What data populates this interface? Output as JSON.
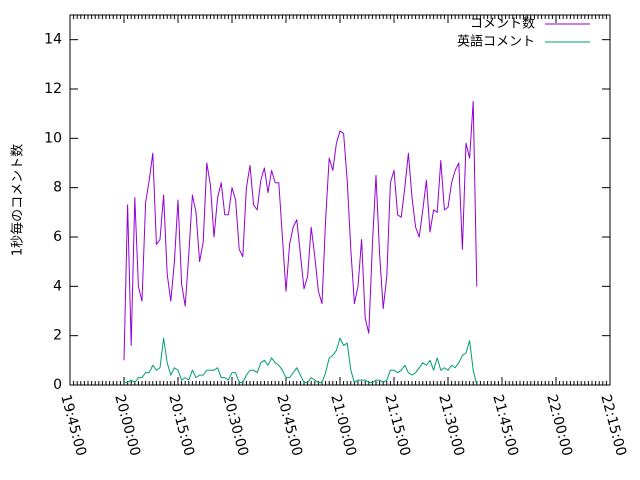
{
  "chart_data": {
    "type": "line",
    "title": "",
    "xlabel": "",
    "ylabel": "1秒毎のコメント数",
    "xlim": [
      "19:45:00",
      "22:15:00"
    ],
    "ylim": [
      0,
      15
    ],
    "x_ticks": [
      "19:45:00",
      "20:00:00",
      "20:15:00",
      "20:30:00",
      "20:45:00",
      "21:00:00",
      "21:15:00",
      "21:30:00",
      "21:45:00",
      "22:00:00",
      "22:15:00"
    ],
    "y_ticks": [
      0,
      2,
      4,
      6,
      8,
      10,
      12,
      14
    ],
    "grid": false,
    "legend_position": "top-right",
    "sample_interval": "1 min",
    "series": [
      {
        "name": "コメント数",
        "color": "#9400d3",
        "start": "20:00:00",
        "values": [
          1.0,
          7.3,
          1.6,
          7.6,
          4.0,
          3.4,
          7.4,
          8.3,
          9.4,
          5.7,
          5.9,
          7.7,
          4.5,
          3.4,
          5.0,
          7.5,
          4.1,
          3.2,
          5.3,
          7.7,
          7.0,
          5.0,
          5.8,
          9.0,
          8.1,
          6.0,
          7.6,
          8.2,
          6.9,
          6.9,
          8.0,
          7.5,
          5.5,
          5.2,
          8.0,
          8.9,
          7.3,
          7.1,
          8.3,
          8.8,
          7.8,
          8.7,
          8.2,
          8.2,
          6.0,
          3.8,
          5.7,
          6.4,
          6.7,
          5.3,
          3.9,
          4.4,
          6.4,
          5.2,
          3.8,
          3.3,
          6.7,
          9.2,
          8.7,
          9.8,
          10.3,
          10.2,
          8.3,
          5.5,
          3.3,
          4.0,
          5.9,
          2.7,
          2.1,
          5.7,
          8.5,
          5.3,
          3.1,
          4.4,
          8.2,
          8.7,
          6.9,
          6.8,
          8.0,
          9.4,
          7.6,
          6.4,
          6.0,
          7.1,
          8.3,
          6.2,
          7.1,
          7.0,
          9.1,
          7.1,
          7.2,
          8.2,
          8.7,
          9.0,
          5.5,
          9.8,
          9.2,
          11.5,
          4.0
        ]
      },
      {
        "name": "英語コメント",
        "color": "#009e73",
        "start": "20:00:00",
        "values": [
          0.1,
          0.1,
          0.2,
          0.1,
          0.3,
          0.3,
          0.5,
          0.5,
          0.8,
          0.6,
          0.7,
          1.9,
          0.9,
          0.4,
          0.7,
          0.6,
          0.2,
          0.3,
          0.2,
          0.6,
          0.3,
          0.4,
          0.4,
          0.6,
          0.6,
          0.6,
          0.7,
          0.3,
          0.3,
          0.2,
          0.5,
          0.5,
          0.1,
          0.1,
          0.4,
          0.6,
          0.6,
          0.5,
          0.9,
          1.0,
          0.8,
          1.1,
          0.9,
          0.8,
          0.6,
          0.3,
          0.3,
          0.5,
          0.7,
          0.4,
          0.1,
          0.1,
          0.3,
          0.2,
          0.1,
          0.1,
          0.5,
          1.1,
          1.2,
          1.4,
          1.9,
          1.6,
          1.7,
          0.6,
          0.1,
          0.2,
          0.2,
          0.2,
          0.1,
          0.1,
          0.2,
          0.2,
          0.1,
          0.2,
          0.6,
          0.6,
          0.5,
          0.6,
          0.8,
          0.5,
          0.4,
          0.5,
          0.7,
          0.9,
          0.8,
          1.0,
          0.6,
          1.1,
          0.6,
          0.7,
          0.6,
          0.8,
          0.7,
          0.9,
          1.2,
          1.3,
          1.8,
          0.6,
          0.0
        ]
      }
    ]
  }
}
